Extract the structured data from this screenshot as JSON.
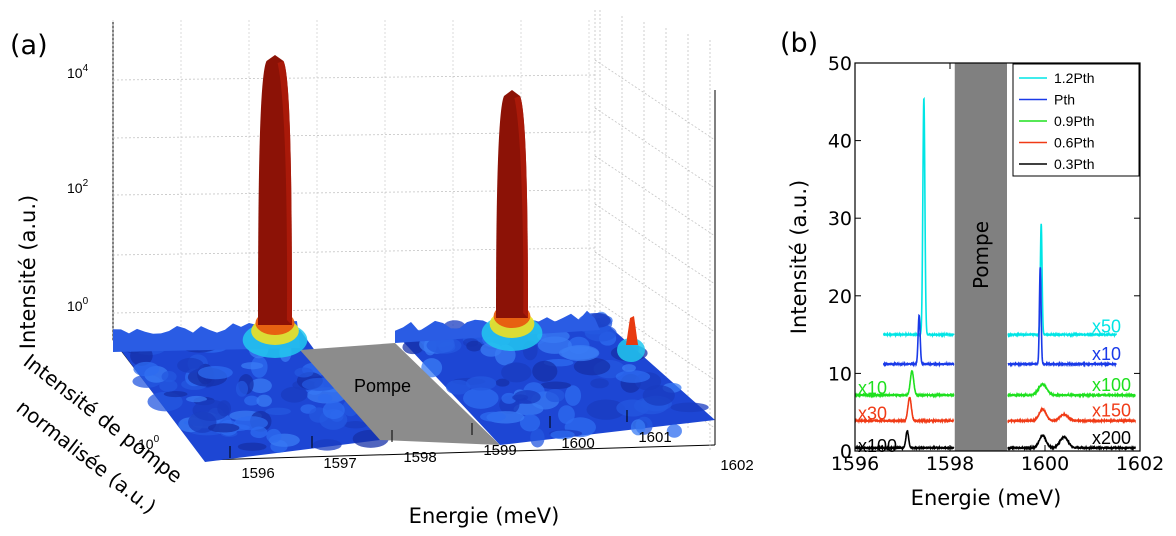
{
  "chart_data": [
    {
      "panel_label": "(a)",
      "type": "surface3d",
      "xlabel": "Energie (meV)",
      "ylabel": "Intensité de pompe normalisée (a.u.)",
      "zlabel": "Intensité (a.u.)",
      "x_ticks": [
        "1596",
        "1597",
        "1598",
        "1599",
        "1600",
        "1601",
        "1602"
      ],
      "y_ticks": [
        "10",
        "0"
      ],
      "z_ticks": [
        {
          "base": "10",
          "exp": "4"
        },
        {
          "base": "10",
          "exp": "2"
        },
        {
          "base": "10",
          "exp": "0"
        }
      ],
      "xlim": [
        1596,
        1602
      ],
      "z_scale": "log",
      "grid": true,
      "annotation": "Pompe",
      "peaks_meV": [
        1597.3,
        1599.7,
        1601.3
      ],
      "colormap": [
        "#1e3cc8",
        "#2a6ee6",
        "#22c8f0",
        "#f0e020",
        "#e03010",
        "#8c1206"
      ]
    },
    {
      "panel_label": "(b)",
      "type": "line",
      "xlabel": "Energie (meV)",
      "ylabel": "Intensité (a.u.)",
      "xlim": [
        1596,
        1602
      ],
      "ylim": [
        0,
        50
      ],
      "x_ticks": [
        "1596",
        "1598",
        "1600",
        "1602"
      ],
      "y_ticks": [
        "0",
        "10",
        "20",
        "30",
        "40",
        "50"
      ],
      "annotation": "Pompe",
      "pump_band": [
        1598.1,
        1599.2
      ],
      "legend_position": "top-right",
      "series": [
        {
          "name": "1.2Pth",
          "color": "#00e5e5",
          "offset": 15.0,
          "left_scale": "",
          "right_scale": "x50",
          "peaks": [
            {
              "x": 1597.45,
              "h": 30.5,
              "w": 0.03
            },
            {
              "x": 1599.92,
              "h": 14.3,
              "w": 0.025
            }
          ],
          "x_start": 1596.6
        },
        {
          "name": "Pth",
          "color": "#1a3ae8",
          "offset": 11.2,
          "left_scale": "",
          "right_scale": "x10",
          "peaks": [
            {
              "x": 1597.35,
              "h": 6.3,
              "w": 0.03
            },
            {
              "x": 1599.9,
              "h": 12.5,
              "w": 0.025
            }
          ],
          "x_start": 1596.6
        },
        {
          "name": "0.9Pth",
          "color": "#1ee01e",
          "offset": 7.2,
          "left_scale": "x10",
          "right_scale": "x100",
          "peaks": [
            {
              "x": 1597.2,
              "h": 3.1,
              "w": 0.05
            },
            {
              "x": 1599.95,
              "h": 1.4,
              "w": 0.12
            }
          ],
          "x_start": 1596.0
        },
        {
          "name": "0.6Pth",
          "color": "#f03a16",
          "offset": 3.9,
          "left_scale": "x30",
          "right_scale": "x150",
          "peaks": [
            {
              "x": 1597.15,
              "h": 3.0,
              "w": 0.05
            },
            {
              "x": 1599.95,
              "h": 1.5,
              "w": 0.1
            },
            {
              "x": 1600.4,
              "h": 0.8,
              "w": 0.12
            }
          ],
          "x_start": 1596.0
        },
        {
          "name": "0.3Pth",
          "color": "#000000",
          "offset": 0.4,
          "left_scale": "x100",
          "right_scale": "x200",
          "peaks": [
            {
              "x": 1597.1,
              "h": 2.2,
              "w": 0.04
            },
            {
              "x": 1599.95,
              "h": 1.6,
              "w": 0.1
            },
            {
              "x": 1600.4,
              "h": 1.4,
              "w": 0.12
            }
          ],
          "x_start": 1596.0
        }
      ]
    }
  ]
}
